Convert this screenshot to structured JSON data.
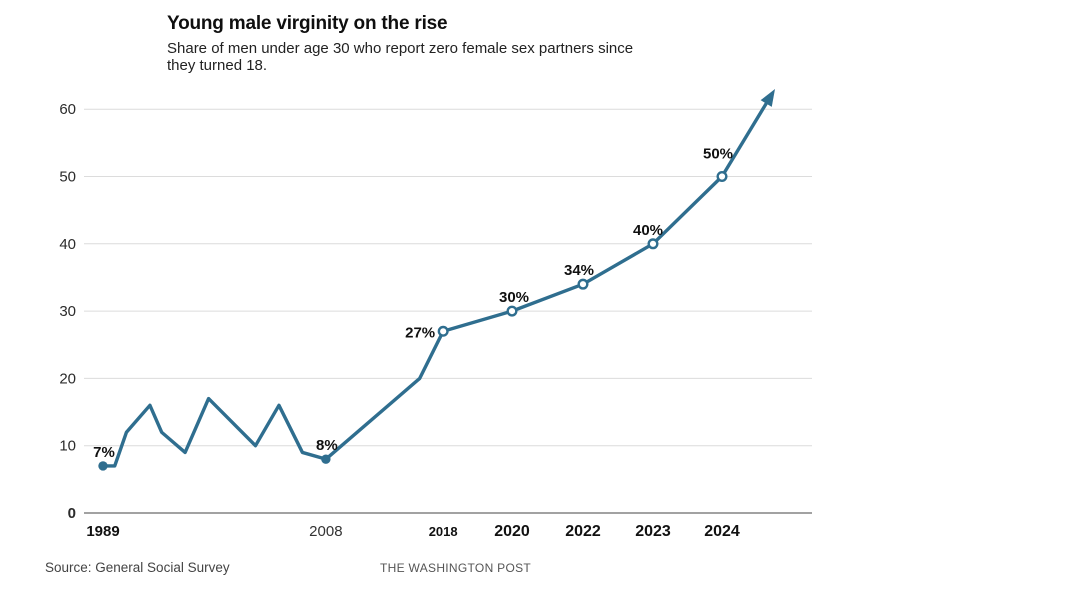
{
  "page": {
    "title": "Young male virginity on the rise",
    "subtitle": "Share of men under age 30 who report zero female sex partners since they turned 18.",
    "source": "Source: General Social Survey",
    "credit": "THE WASHINGTON POST"
  },
  "chart_data": {
    "type": "line",
    "title": "Young male virginity on the rise",
    "subtitle": "Share of men under age 30 who report zero female sex partners since they turned 18.",
    "xlabel": "",
    "ylabel": "",
    "ylim": [
      0,
      65
    ],
    "yticks": [
      0,
      10,
      20,
      30,
      40,
      50,
      60
    ],
    "grid": true,
    "legend": "none",
    "line_color": "#2f6e8f",
    "grid_color": "#dcdcdc",
    "axis_color": "#a2a2a2",
    "value_label_color": "#111111",
    "x_axis_note": "linear year scale 1989-2018; 2020/2022/2023/2024 evenly spaced",
    "series": [
      {
        "name": "Share of men under 30 reporting zero female sex partners since age 18 (%)",
        "points": [
          {
            "year": 1989,
            "value": 7,
            "label": "7%",
            "marker": "filled",
            "label_anchor": "middle",
            "label_offset": {
              "dx": 1,
              "dy": -9
            }
          },
          {
            "year": 1990,
            "value": 7
          },
          {
            "year": 1991,
            "value": 12
          },
          {
            "year": 1993,
            "value": 16
          },
          {
            "year": 1994,
            "value": 12
          },
          {
            "year": 1996,
            "value": 9
          },
          {
            "year": 1998,
            "value": 17
          },
          {
            "year": 2002,
            "value": 10
          },
          {
            "year": 2004,
            "value": 16
          },
          {
            "year": 2006,
            "value": 9
          },
          {
            "year": 2008,
            "value": 8,
            "label": "8%",
            "marker": "filled",
            "label_anchor": "middle",
            "label_offset": {
              "dx": 1,
              "dy": -9
            }
          },
          {
            "year": 2016,
            "value": 20
          },
          {
            "year": 2018,
            "value": 27,
            "label": "27%",
            "marker": "open",
            "label_anchor": "end",
            "label_offset": {
              "dx": -8,
              "dy": 6
            }
          },
          {
            "year": 2020,
            "value": 30,
            "label": "30%",
            "marker": "open",
            "label_anchor": "middle",
            "label_offset": {
              "dx": 2,
              "dy": -9
            }
          },
          {
            "year": 2022,
            "value": 34,
            "label": "34%",
            "marker": "open",
            "label_anchor": "middle",
            "label_offset": {
              "dx": -4,
              "dy": -9
            }
          },
          {
            "year": 2023,
            "value": 40,
            "label": "40%",
            "marker": "open",
            "label_anchor": "middle",
            "label_offset": {
              "dx": -5,
              "dy": -9
            }
          },
          {
            "year": 2024,
            "value": 50,
            "label": "50%",
            "marker": "open",
            "label_anchor": "middle",
            "label_offset": {
              "dx": -4,
              "dy": -18
            }
          }
        ],
        "trend_arrow": {
          "extends_to_value": 63
        }
      }
    ],
    "xticks": [
      {
        "label": "1989",
        "year": 1989,
        "weight": "bold",
        "size": 15
      },
      {
        "label": "2008",
        "year": 2008,
        "weight": "normal",
        "size": 15
      },
      {
        "label": "2018",
        "year": 2018,
        "weight": "bold",
        "size": 13
      },
      {
        "label": "2020",
        "year": 2020,
        "weight": "bold",
        "size": 16
      },
      {
        "label": "2022",
        "year": 2022,
        "weight": "bold",
        "size": 16
      },
      {
        "label": "2023",
        "year": 2023,
        "weight": "bold",
        "size": 16
      },
      {
        "label": "2024",
        "year": 2024,
        "weight": "bold",
        "size": 16
      }
    ]
  }
}
